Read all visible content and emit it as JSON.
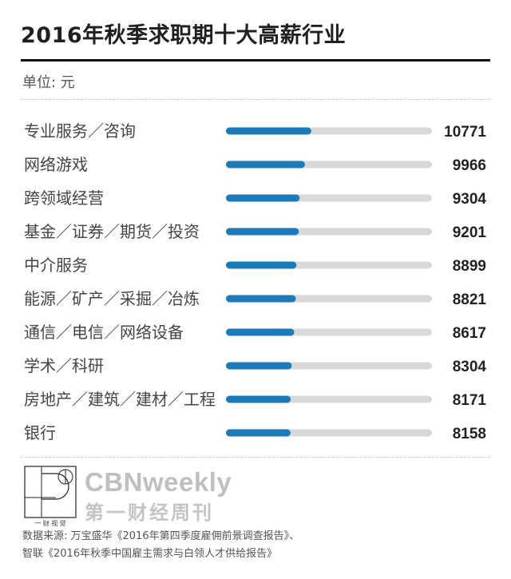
{
  "title": "2016年秋季求职期十大高薪行业",
  "unit": "单位: 元",
  "colors": {
    "bar": "#1b7bb8",
    "track": "#d9d9d9"
  },
  "chart_data": {
    "type": "bar",
    "orientation": "horizontal",
    "categories": [
      "专业服务／咨询",
      "网络游戏",
      "跨领域经营",
      "基金／证券／期货／投资",
      "中介服务",
      "能源／矿产／采掘／冶炼",
      "通信／电信／网络设备",
      "学术／科研",
      "房地产／建筑／建材／工程",
      "银行"
    ],
    "values": [
      10771,
      9966,
      9304,
      9201,
      8899,
      8821,
      8617,
      8304,
      8171,
      8158
    ],
    "title": "2016年秋季求职期十大高薪行业",
    "xlabel": "",
    "ylabel": "",
    "unit": "单位: 元",
    "xlim": [
      0,
      26000
    ],
    "grid": false,
    "legend": "none"
  },
  "brand": {
    "name": "CBNweekly",
    "subtitle": "第一财经周刊",
    "mark_text": "一 财 视 觉"
  },
  "source": {
    "line1": "数据来源: 万宝盛华《2016年第四季度雇佣前景调查报告》、",
    "line2": "智联《2016年秋季中国雇主需求与白领人才供给报告》"
  }
}
